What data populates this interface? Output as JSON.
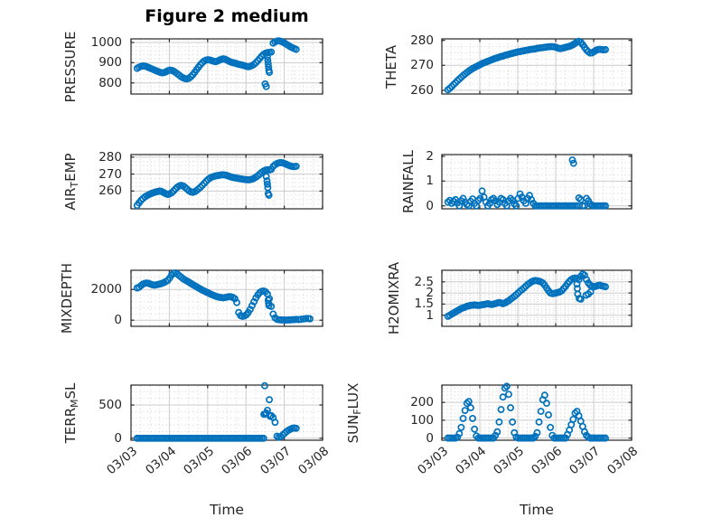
{
  "figure": {
    "title": "Figure 2 medium",
    "xlabel": "Time",
    "marker_color": "#0072BD",
    "axis_color": "#262626",
    "grid_color": "#cccccc",
    "minor_grid_color": "#d2d2d2",
    "background": "#ffffff"
  },
  "x_axis": {
    "lim": [
      0,
      5
    ],
    "tick_values": [
      0,
      1,
      2,
      3,
      4,
      5
    ],
    "tick_labels": [
      "03/03",
      "03/04",
      "03/05",
      "03/06",
      "03/07",
      "03/08"
    ],
    "minor_step": 0.25
  },
  "chart_data": [
    {
      "type": "scatter",
      "name": "PRESSURE",
      "label_parts": [
        {
          "text": "PRESSURE",
          "sub": false
        }
      ],
      "row": 0,
      "col": 0,
      "ylim": [
        745,
        1018
      ],
      "yticks": [
        800,
        900,
        1000
      ],
      "ytick_labels": [
        "800",
        "900",
        "1000"
      ],
      "y_minor_step": 20,
      "series": {
        "t0": 0.16,
        "dt": 0.05,
        "values": [
          872,
          878,
          882,
          884,
          883,
          880,
          876,
          872,
          868,
          864,
          860,
          856,
          852,
          850,
          851,
          855,
          860,
          863,
          862,
          858,
          852,
          845,
          838,
          830,
          825,
          821,
          820,
          823,
          830,
          840,
          852,
          865,
          878,
          890,
          900,
          908,
          913,
          915,
          913,
          910,
          907,
          905,
          908,
          913,
          917,
          919,
          917,
          912,
          907,
          903,
          900,
          898,
          895,
          892,
          890,
          888,
          885,
          882,
          880,
          882,
          886,
          892,
          900,
          910,
          921,
          932,
          941,
          947,
          950,
          951,
          953,
          997,
          1003,
          1007,
          1008,
          1006,
          1002,
          997,
          991,
          985,
          979,
          974,
          970,
          966
        ]
      },
      "extra_points": [
        [
          3.5,
          795
        ],
        [
          3.53,
          782
        ],
        [
          3.55,
          948
        ],
        [
          3.56,
          930
        ],
        [
          3.57,
          912
        ],
        [
          3.58,
          895
        ],
        [
          3.59,
          878
        ],
        [
          3.6,
          862
        ],
        [
          3.61,
          852
        ]
      ]
    },
    {
      "type": "scatter",
      "name": "THETA",
      "label_parts": [
        {
          "text": "THETA",
          "sub": false
        }
      ],
      "row": 0,
      "col": 1,
      "ylim": [
        258.5,
        280.6
      ],
      "yticks": [
        260,
        270,
        280
      ],
      "ytick_labels": [
        "260",
        "270",
        "280"
      ],
      "y_minor_step": 2.5,
      "series": {
        "t0": 0.16,
        "dt": 0.05,
        "values": [
          260.2,
          260.8,
          261.5,
          262.3,
          263.0,
          263.8,
          264.5,
          265.2,
          265.9,
          266.5,
          267.1,
          267.7,
          268.2,
          268.7,
          269.1,
          269.5,
          269.9,
          270.3,
          270.7,
          271.0,
          271.3,
          271.6,
          271.9,
          272.2,
          272.5,
          272.8,
          273.0,
          273.3,
          273.5,
          273.7,
          274.0,
          274.2,
          274.4,
          274.6,
          274.8,
          275.0,
          275.2,
          275.4,
          275.5,
          275.7,
          275.8,
          276.0,
          276.1,
          276.3,
          276.4,
          276.5,
          276.6,
          276.8,
          276.9,
          277.0,
          277.1,
          277.2,
          277.3,
          277.4,
          277.5,
          277.5,
          277.4,
          277.2,
          276.9,
          276.7,
          276.8,
          277.0,
          277.2,
          277.4,
          277.6,
          277.9,
          278.3,
          278.8,
          279.3,
          279.6,
          279.2,
          278.3,
          277.2,
          276.2,
          275.4,
          274.9,
          275.0,
          275.5,
          276.0,
          276.3,
          276.4,
          276.3,
          276.2,
          276.3
        ]
      },
      "extra_points": []
    },
    {
      "type": "scatter",
      "name": "AIR_TEMP",
      "label_parts": [
        {
          "text": "AIR",
          "sub": false
        },
        {
          "text": "T",
          "sub": true
        },
        {
          "text": "EMP",
          "sub": false
        }
      ],
      "row": 1,
      "col": 0,
      "ylim": [
        249.5,
        281.5
      ],
      "yticks": [
        260,
        270,
        280
      ],
      "ytick_labels": [
        "260",
        "270",
        "280"
      ],
      "y_minor_step": 2.5,
      "series": {
        "t0": 0.16,
        "dt": 0.05,
        "values": [
          251.5,
          253.0,
          254.5,
          255.5,
          256.5,
          257.2,
          257.8,
          258.3,
          258.8,
          259.2,
          259.5,
          259.8,
          260.0,
          259.6,
          259.0,
          258.4,
          258.0,
          258.3,
          259.0,
          260.0,
          261.2,
          262.3,
          263.0,
          263.3,
          263.0,
          262.2,
          261.2,
          260.2,
          259.5,
          259.2,
          259.6,
          260.3,
          261.2,
          262.2,
          263.3,
          264.5,
          265.7,
          266.8,
          267.6,
          268.2,
          268.6,
          268.9,
          269.1,
          269.3,
          269.5,
          269.6,
          269.4,
          269.1,
          268.7,
          268.3,
          268.0,
          267.8,
          267.6,
          267.4,
          267.2,
          267.0,
          266.8,
          266.7,
          266.6,
          266.7,
          267.0,
          267.5,
          268.2,
          269.0,
          270.0,
          271.0,
          271.8,
          272.3,
          272.5,
          272.4,
          272.8,
          274.5,
          275.5,
          276.2,
          276.6,
          276.8,
          276.6,
          276.2,
          275.7,
          275.2,
          274.8,
          274.5,
          274.4,
          274.6
        ]
      },
      "extra_points": [
        [
          3.53,
          268.5
        ],
        [
          3.55,
          266.0
        ],
        [
          3.56,
          264.0
        ],
        [
          3.57,
          262.0
        ],
        [
          3.58,
          258.5
        ],
        [
          3.6,
          257.5
        ]
      ]
    },
    {
      "type": "scatter",
      "name": "RAINFALL",
      "label_parts": [
        {
          "text": "RAINFALL",
          "sub": false
        }
      ],
      "row": 1,
      "col": 1,
      "ylim": [
        -0.12,
        2.07
      ],
      "yticks": [
        0,
        1,
        2
      ],
      "ytick_labels": [
        "0",
        "1",
        "2"
      ],
      "y_minor_step": 0.25,
      "series": {
        "t0": 0.16,
        "dt": 0.05,
        "values": [
          0.15,
          0.22,
          0.1,
          0.18,
          0.25,
          0.12,
          0.0,
          0.2,
          0.3,
          0.15,
          0.05,
          0.0,
          0.18,
          0.28,
          0.1,
          0.0,
          0.22,
          0.3,
          0.6,
          0.35,
          0.15,
          0.0,
          0.1,
          0.25,
          0.3,
          0.2,
          0.05,
          0.15,
          0.3,
          0.25,
          0.1,
          0.0,
          0.2,
          0.3,
          0.22,
          0.08,
          0.0,
          0.3,
          0.48,
          0.35,
          0.2,
          0.1,
          0.3,
          0.42,
          0.25,
          0.1,
          0.0,
          0.0,
          0.0,
          0.0,
          0.0,
          0.0,
          0.0,
          0.0,
          0.0,
          0.0,
          0.0,
          0.0,
          0.0,
          0.0,
          0.0,
          0.0,
          0.0,
          0.0,
          0.0,
          0.0,
          0.0,
          0.0,
          0.0,
          0.32,
          0.25,
          0.0,
          0.0,
          0.3,
          0.2,
          0.08,
          0.0,
          0.0,
          0.0,
          0.0,
          0.0,
          0.0,
          0.0,
          0.0
        ]
      },
      "extra_points": [
        [
          3.44,
          1.85
        ],
        [
          3.47,
          1.72
        ]
      ]
    },
    {
      "type": "scatter",
      "name": "MIXDEPTH",
      "label_parts": [
        {
          "text": "MIXDEPTH",
          "sub": false
        }
      ],
      "row": 2,
      "col": 0,
      "ylim": [
        -400,
        3250
      ],
      "yticks": [
        0,
        2000
      ],
      "ytick_labels": [
        "0",
        "2000"
      ],
      "y_minor_step": 400,
      "series": {
        "t0": 0.16,
        "dt": 0.05,
        "values": [
          2100,
          2150,
          2250,
          2350,
          2400,
          2420,
          2400,
          2350,
          2300,
          2280,
          2300,
          2330,
          2360,
          2400,
          2450,
          2520,
          2600,
          2750,
          2950,
          3050,
          3080,
          3000,
          2900,
          2800,
          2700,
          2620,
          2550,
          2480,
          2400,
          2320,
          2250,
          2180,
          2100,
          2030,
          1960,
          1900,
          1840,
          1780,
          1720,
          1660,
          1610,
          1560,
          1520,
          1490,
          1470,
          1460,
          1480,
          1510,
          1530,
          1520,
          1480,
          1400,
          1150,
          500,
          300,
          250,
          280,
          350,
          500,
          700,
          950,
          1200,
          1450,
          1650,
          1800,
          1880,
          1900,
          1850,
          1700,
          1400,
          900,
          400,
          150,
          60,
          30,
          20,
          15,
          10,
          10,
          15,
          20,
          30,
          40,
          50
        ]
      },
      "extra_points": [
        [
          3.58,
          1300
        ],
        [
          3.59,
          1100
        ],
        [
          3.6,
          950
        ],
        [
          4.38,
          40
        ],
        [
          4.44,
          60
        ],
        [
          4.5,
          80
        ],
        [
          4.56,
          100
        ],
        [
          4.62,
          110
        ],
        [
          4.67,
          90
        ]
      ]
    },
    {
      "type": "scatter",
      "name": "H2OMIXRA",
      "label_parts": [
        {
          "text": "H2OMIXRA",
          "sub": false
        }
      ],
      "row": 2,
      "col": 1,
      "ylim": [
        0.5,
        3.02
      ],
      "yticks": [
        1,
        1.5,
        2,
        2.5
      ],
      "ytick_labels": [
        "1",
        "1.5",
        "2",
        "2.5"
      ],
      "y_minor_step": 0.1,
      "series": {
        "t0": 0.16,
        "dt": 0.05,
        "values": [
          0.95,
          1.0,
          1.05,
          1.1,
          1.15,
          1.2,
          1.25,
          1.3,
          1.33,
          1.36,
          1.4,
          1.42,
          1.44,
          1.45,
          1.46,
          1.45,
          1.44,
          1.45,
          1.47,
          1.48,
          1.5,
          1.52,
          1.5,
          1.48,
          1.5,
          1.52,
          1.55,
          1.57,
          1.55,
          1.52,
          1.55,
          1.6,
          1.65,
          1.72,
          1.78,
          1.85,
          1.92,
          2.0,
          2.08,
          2.15,
          2.22,
          2.3,
          2.38,
          2.44,
          2.5,
          2.54,
          2.56,
          2.55,
          2.53,
          2.5,
          2.45,
          2.35,
          2.22,
          2.1,
          2.0,
          1.97,
          1.98,
          2.0,
          2.02,
          2.05,
          2.1,
          2.2,
          2.3,
          2.42,
          2.52,
          2.6,
          2.65,
          2.67,
          2.65,
          2.6,
          2.75,
          2.85,
          2.8,
          2.6,
          2.45,
          2.35,
          2.3,
          2.28,
          2.3,
          2.33,
          2.35,
          2.32,
          2.3,
          2.28
        ]
      },
      "extra_points": [
        [
          3.56,
          2.4
        ],
        [
          3.57,
          2.2
        ],
        [
          3.58,
          1.95
        ],
        [
          3.62,
          1.75
        ],
        [
          3.66,
          1.72
        ],
        [
          3.8,
          1.9
        ],
        [
          3.86,
          1.95
        ],
        [
          3.92,
          2.05
        ]
      ]
    },
    {
      "type": "scatter",
      "name": "TERR_MSL",
      "label_parts": [
        {
          "text": "TERR",
          "sub": false
        },
        {
          "text": "M",
          "sub": true
        },
        {
          "text": "SL",
          "sub": false
        }
      ],
      "row": 3,
      "col": 0,
      "ylim": [
        -30,
        800
      ],
      "yticks": [
        0,
        500
      ],
      "ytick_labels": [
        "0",
        "500"
      ],
      "y_minor_step": 100,
      "series": {
        "t0": 0.16,
        "dt": 0.05,
        "values": [
          0,
          0,
          0,
          0,
          0,
          0,
          0,
          0,
          0,
          0,
          0,
          0,
          0,
          0,
          0,
          0,
          0,
          0,
          0,
          0,
          0,
          0,
          0,
          0,
          0,
          0,
          0,
          0,
          0,
          0,
          0,
          0,
          0,
          0,
          0,
          0,
          0,
          0,
          0,
          0,
          0,
          0,
          0,
          0,
          0,
          0,
          0,
          0,
          0,
          0,
          0,
          0,
          0,
          0,
          0,
          0,
          0,
          0,
          0,
          0,
          0,
          0,
          0,
          0,
          0,
          0,
          0,
          365,
          420,
          580,
          340,
          310,
          240,
          30,
          15,
          25,
          50,
          75,
          100,
          120,
          135,
          150,
          155,
          150
        ]
      },
      "extra_points": [
        [
          3.49,
          790
        ],
        [
          3.47,
          360
        ],
        [
          3.53,
          380
        ],
        [
          3.63,
          330
        ]
      ]
    },
    {
      "type": "scatter",
      "name": "SUN_FLUX",
      "label_parts": [
        {
          "text": "SUN",
          "sub": false
        },
        {
          "text": "F",
          "sub": true
        },
        {
          "text": "LUX",
          "sub": false
        }
      ],
      "row": 3,
      "col": 1,
      "ylim": [
        -12,
        297
      ],
      "yticks": [
        0,
        100,
        200
      ],
      "ytick_labels": [
        "0",
        "100",
        "200"
      ],
      "y_minor_step": 20,
      "series": {
        "t0": 0.16,
        "dt": 0.05,
        "values": [
          0,
          0,
          0,
          0,
          0,
          5,
          25,
          60,
          110,
          155,
          195,
          205,
          170,
          110,
          50,
          12,
          0,
          0,
          0,
          0,
          0,
          0,
          0,
          0,
          0,
          15,
          35,
          90,
          160,
          230,
          280,
          290,
          245,
          170,
          90,
          30,
          5,
          0,
          0,
          0,
          0,
          0,
          0,
          0,
          0,
          0,
          10,
          30,
          90,
          150,
          215,
          240,
          195,
          130,
          60,
          15,
          0,
          0,
          0,
          0,
          0,
          0,
          0,
          20,
          45,
          75,
          105,
          140,
          150,
          125,
          95,
          65,
          35,
          15,
          5,
          0,
          0,
          0,
          0,
          0,
          0,
          0,
          0,
          0
        ]
      },
      "extra_points": []
    }
  ]
}
